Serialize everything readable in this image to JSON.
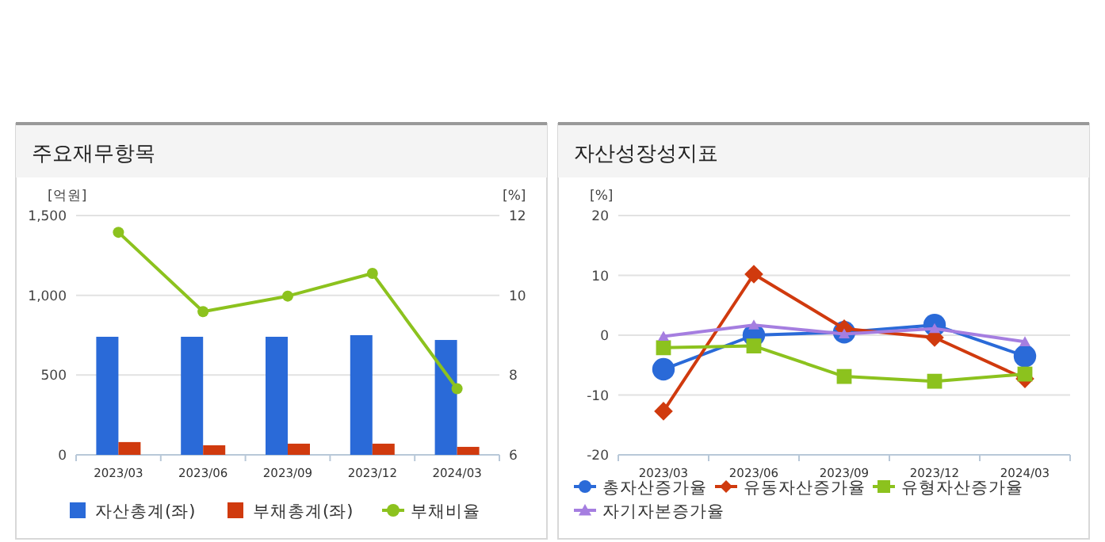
{
  "chart_data": [
    {
      "type": "bar",
      "title": "주요재무항목",
      "ylabel": "[억원]",
      "y2label": "[%]",
      "categories": [
        "2023/03",
        "2023/06",
        "2023/09",
        "2023/12",
        "2024/03"
      ],
      "series": [
        {
          "name": "자산총계(좌)",
          "color": "#2a6ad8",
          "values": [
            740,
            740,
            740,
            750,
            720
          ]
        },
        {
          "name": "부채총계(좌)",
          "color": "#d03a0e",
          "values": [
            80,
            60,
            70,
            70,
            50
          ]
        },
        {
          "name": "부채비율",
          "type": "line",
          "axis": "y2",
          "marker": "circle",
          "color": "#8cc21e",
          "values": [
            11.58,
            9.59,
            9.98,
            10.55,
            7.66
          ]
        }
      ],
      "ylim": [
        0,
        1500
      ],
      "yticks": [
        0,
        500,
        {
          "value": 1000,
          "label": "1,000"
        },
        {
          "value": 1500,
          "label": "1,500"
        }
      ],
      "y2lim": [
        6,
        12
      ],
      "y2ticks": [
        6,
        8,
        10,
        12
      ],
      "grid": "y",
      "legend": "bottom"
    },
    {
      "type": "line",
      "title": "자산성장성지표",
      "ylabel": "[%]",
      "categories": [
        "2023/03",
        "2023/06",
        "2023/09",
        "2023/12",
        "2024/03"
      ],
      "series": [
        {
          "name": "총자산증가율",
          "marker": "circle",
          "color": "#2a6ad8",
          "values": [
            -5.7,
            0,
            0.5,
            1.7,
            -3.5
          ]
        },
        {
          "name": "유동자산증가율",
          "marker": "diamond",
          "color": "#d03a0e",
          "values": [
            -12.7,
            10.2,
            1.1,
            -0.4,
            -7.3
          ]
        },
        {
          "name": "유형자산증가율",
          "marker": "square",
          "color": "#8cc21e",
          "values": [
            -2.1,
            -1.8,
            -6.9,
            -7.7,
            -6.5
          ]
        },
        {
          "name": "자기자본증가율",
          "marker": "triangle",
          "color": "#a57ee0",
          "values": [
            -0.2,
            1.7,
            0.2,
            1.1,
            -1.1
          ]
        }
      ],
      "ylim": [
        -20,
        20
      ],
      "yticks": [
        -20,
        -10,
        0,
        10,
        20
      ],
      "grid": "y",
      "legend": "bottom"
    }
  ]
}
